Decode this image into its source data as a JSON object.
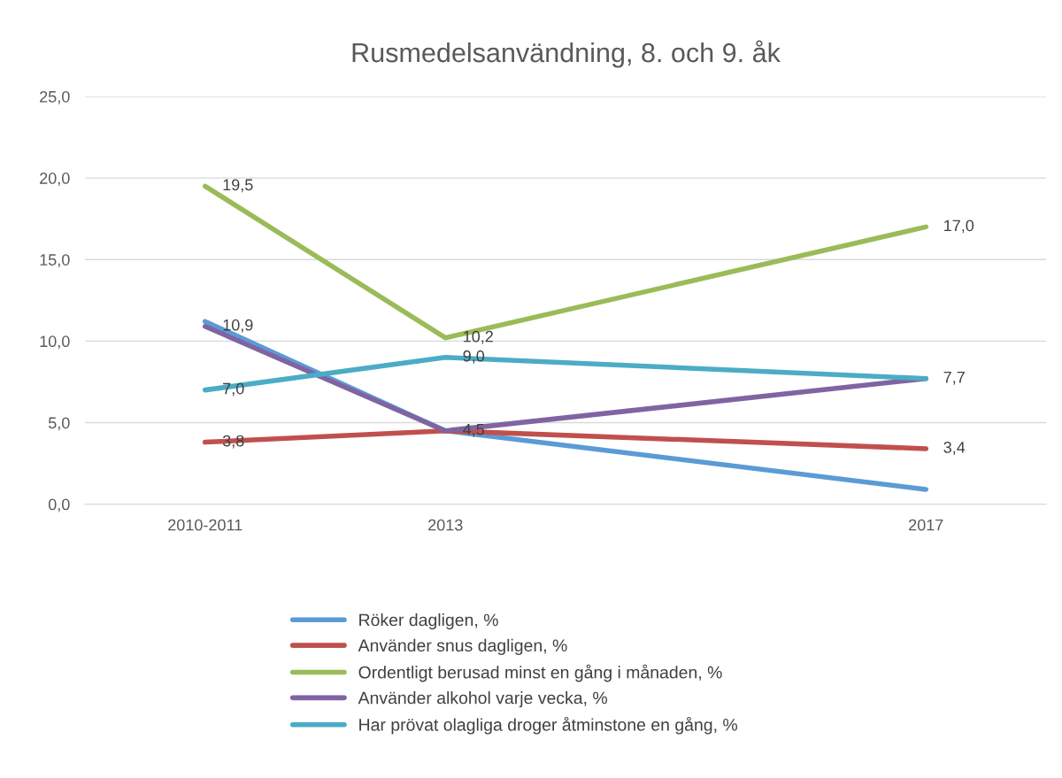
{
  "chart_data": {
    "type": "line",
    "title": "Rusmedelsanvändning, 8. och 9. åk",
    "x": [
      2011,
      2013,
      2017
    ],
    "xlim": [
      2010,
      2018
    ],
    "xticks": [
      {
        "value": 2011,
        "label": "2010-2011"
      },
      2013,
      2017
    ],
    "ylim": [
      0,
      25
    ],
    "yticks": [
      {
        "value": 0,
        "label": "0,0"
      },
      {
        "value": 5,
        "label": "5,0"
      },
      {
        "value": 10,
        "label": "10,0"
      },
      {
        "value": 15,
        "label": "15,0"
      },
      {
        "value": 20,
        "label": "20,0"
      },
      {
        "value": 25,
        "label": "25,0"
      }
    ],
    "grid": "y",
    "legend": "bottom",
    "marker": "none",
    "line_style": "solid",
    "series": [
      {
        "name": "Röker dagligen, %",
        "color": "#5b9bd5",
        "values": [
          11.2,
          4.5,
          0.9
        ],
        "value_labels": [
          null,
          null,
          null
        ]
      },
      {
        "name": "Använder snus dagligen, %",
        "color": "#c0504d",
        "values": [
          3.8,
          4.5,
          3.4
        ],
        "value_labels": [
          "3,8",
          null,
          "3,4"
        ]
      },
      {
        "name": "Ordentligt berusad minst en gång i månaden, %",
        "color": "#9bbb59",
        "values": [
          19.5,
          10.2,
          17.0
        ],
        "value_labels": [
          "19,5",
          "10,2",
          "17,0"
        ]
      },
      {
        "name": "Använder alkohol varje vecka, %",
        "color": "#8064a2",
        "values": [
          10.9,
          4.5,
          7.7
        ],
        "value_labels": [
          "10,9",
          "4,5",
          "7,7"
        ]
      },
      {
        "name": "Har prövat olagliga droger åtminstone en gång, %",
        "color": "#4bacc6",
        "values": [
          7.0,
          9.0,
          7.7
        ],
        "value_labels": [
          "7,0",
          "9,0",
          null
        ]
      }
    ]
  }
}
